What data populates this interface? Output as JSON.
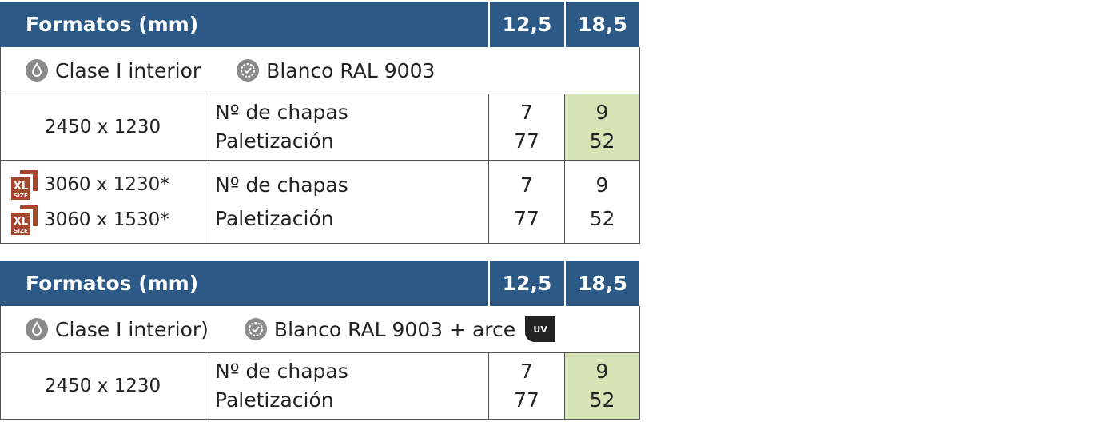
{
  "icons": {
    "xl": [
      "XL",
      "SIZE"
    ],
    "uv": "UV"
  },
  "tables": [
    {
      "header": [
        "Formatos (mm)",
        "12,5",
        "18,5"
      ],
      "finish": [
        "Clase I interior",
        "Blanco RAL 9003"
      ],
      "rows": [
        {
          "formats": [
            "2450 x 1230"
          ],
          "xl": false,
          "labels": [
            "Nº de chapas",
            "Paletización"
          ],
          "values": [
            [
              7,
              77
            ],
            [
              9,
              52
            ]
          ],
          "highlight": "#d6e4b6"
        },
        {
          "formats": [
            "3060 x 1230*",
            "3060 x 1530*"
          ],
          "xl": true,
          "labels": [
            "Nº de chapas",
            "Paletización"
          ],
          "values": [
            [
              7,
              77
            ],
            [
              9,
              52
            ]
          ]
        }
      ]
    },
    {
      "header": [
        "Formatos (mm)",
        "12,5",
        "18,5"
      ],
      "finish": [
        "Clase I interior)",
        "Blanco RAL 9003 + arce"
      ],
      "uv": true,
      "rows": [
        {
          "formats": [
            "2450 x 1230"
          ],
          "xl": false,
          "labels": [
            "Nº de chapas",
            "Paletización"
          ],
          "values": [
            [
              7,
              77
            ],
            [
              9,
              52
            ]
          ],
          "highlight": "#d6e4b6"
        }
      ]
    }
  ]
}
